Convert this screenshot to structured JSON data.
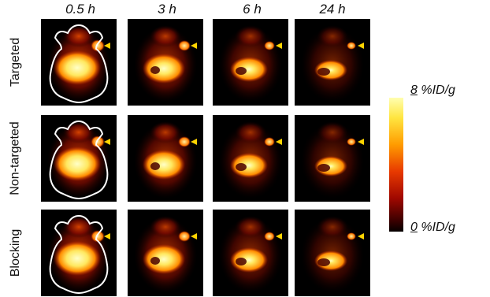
{
  "columns": [
    "0.5 h",
    "3 h",
    "6 h",
    "24 h"
  ],
  "rows": [
    "Targeted",
    "Non-targeted",
    "Blocking"
  ],
  "colorbar": {
    "max_value": "8",
    "max_unit": "%ID/g",
    "min_value": "0",
    "min_unit": "%ID/g"
  },
  "colors": {
    "hot_high": "#ffffc0",
    "hot_mid": "#ff9c00",
    "hot_low": "#8a0800",
    "background": "#000000",
    "arrowhead": "#ffd400",
    "outline": "#ffffff"
  }
}
